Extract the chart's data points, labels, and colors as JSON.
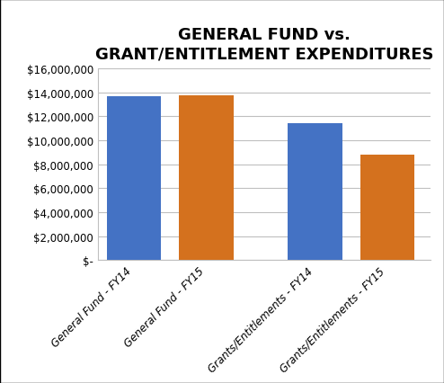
{
  "title": "GENERAL FUND vs.\nGRANT/ENTITLEMENT EXPENDITURES",
  "categories": [
    "General Fund - FY14",
    "General Fund - FY15",
    "Grants/Entitlements - FY14",
    "Grants/Entitlements - FY15"
  ],
  "values": [
    13700000,
    13750000,
    11400000,
    8800000
  ],
  "bar_colors": [
    "#4472C4",
    "#D4711E",
    "#4472C4",
    "#D4711E"
  ],
  "ylim": [
    0,
    16000000
  ],
  "yticks": [
    0,
    2000000,
    4000000,
    6000000,
    8000000,
    10000000,
    12000000,
    14000000,
    16000000
  ],
  "ytick_labels": [
    "$-",
    "$2,000,000",
    "$4,000,000",
    "$6,000,000",
    "$8,000,000",
    "$10,000,000",
    "$12,000,000",
    "$14,000,000",
    "$16,000,000"
  ],
  "background_color": "#FFFFFF",
  "grid_color": "#BFBFBF",
  "title_fontsize": 13,
  "tick_fontsize": 8.5,
  "bar_positions": [
    0.5,
    1.5,
    3.0,
    4.0
  ],
  "bar_width": 0.75,
  "xlim": [
    0,
    4.6
  ]
}
